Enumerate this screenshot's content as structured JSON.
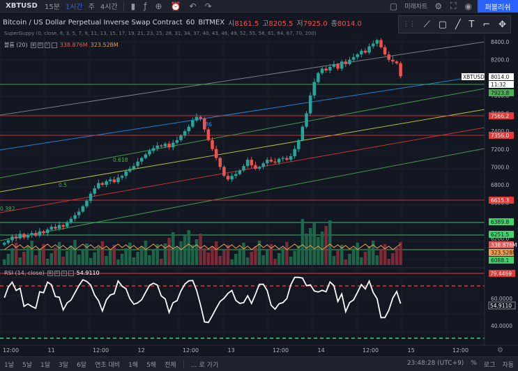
{
  "toolbar": {
    "symbol": "XBTUSD",
    "intervals": [
      "15분",
      "1시간",
      "주",
      "4시간"
    ],
    "active_interval": "1시간",
    "chart_type_label": "미래차트",
    "publish_label": "퍼블리쉬"
  },
  "legend": {
    "title": "Bitcoin / US Dollar Perpetual Inverse Swap Contract",
    "resolution": "60",
    "exchange": "BITMEX",
    "open_label": "시",
    "open": "8161.5",
    "high_label": "고",
    "high": "8205.5",
    "low_label": "저",
    "low": "7925.0",
    "close_label": "종",
    "close": "8014.0",
    "supergy": "SuperGuppy (0, close, 6, 3, 5, 7, 9, 11, 13, 15, 17, 19, 21, 23, 25, 28, 31, 34, 37, 40, 43, 46, 49, 52, 55, 58, 61, 64, 67, 70, 200)",
    "volume_label": "볼륨 (20)",
    "volume_value": "338.876M",
    "volume_ma": "323.528M",
    "rsi_label": "RSI (14, close)",
    "rsi_value": "54.9110"
  },
  "fib_labels": [
    "0.618",
    "0.5",
    "0.382",
    ".86"
  ],
  "price_axis": {
    "ticks": [
      "8400.0",
      "8200.0",
      "7800.0",
      "7600.0",
      "7400.0",
      "7200.0",
      "7000.0",
      "6800.0",
      "6600.0",
      "6400.0",
      "6200.0"
    ],
    "tags": [
      {
        "label": "XBTUSD",
        "value": "8014.0",
        "color": "#ffffff",
        "text": "#131722"
      },
      {
        "label": "",
        "value": "11:32",
        "color": "#ffffff",
        "text": "#131722"
      },
      {
        "label": "",
        "value": "7923.8",
        "color": "#4caf50",
        "text": "#131722"
      },
      {
        "label": "",
        "value": "7566.2",
        "color": "#e53935",
        "text": "#ffffff"
      },
      {
        "label": "",
        "value": "7356.0",
        "color": "#e53935",
        "text": "#ffffff"
      },
      {
        "label": "",
        "value": "6615.3",
        "color": "#e53935",
        "text": "#ffffff"
      },
      {
        "label": "",
        "value": "6389.8",
        "color": "#43d36b",
        "text": "#131722"
      },
      {
        "label": "",
        "value": "6251.5",
        "color": "#43d36b",
        "text": "#131722"
      },
      {
        "label": "",
        "value": "338.876M",
        "color": "#ef5350",
        "text": "#ffffff"
      },
      {
        "label": "",
        "value": "323.528M",
        "color": "#f0a04b",
        "text": "#131722"
      },
      {
        "label": "",
        "value": "6088.1",
        "color": "#43d36b",
        "text": "#131722"
      }
    ],
    "rsi_ticks": [
      "60.0000",
      "40.0000"
    ],
    "rsi_tags": [
      {
        "value": "79.4469",
        "color": "#e53935",
        "text": "#ffffff"
      },
      {
        "value": "54.9110",
        "color": "#131722",
        "text": "#ffffff"
      }
    ]
  },
  "time_axis": [
    "12:00",
    "11",
    "12:00",
    "12",
    "12:00",
    "13",
    "12:00",
    "14",
    "12:00",
    "15",
    "12:00"
  ],
  "bottom": {
    "ranges": [
      "1날",
      "5날",
      "1달",
      "3달",
      "6달",
      "연초 대비",
      "1해",
      "5해",
      "전체"
    ],
    "goto": "… 로 가기",
    "clock": "23:48:28 (UTC+9)",
    "percent": "%",
    "log": "로그",
    "auto": "자동"
  },
  "colors": {
    "up": "#26a69a",
    "down": "#ef5350",
    "background": "#131722",
    "accent": "#2962ff"
  }
}
